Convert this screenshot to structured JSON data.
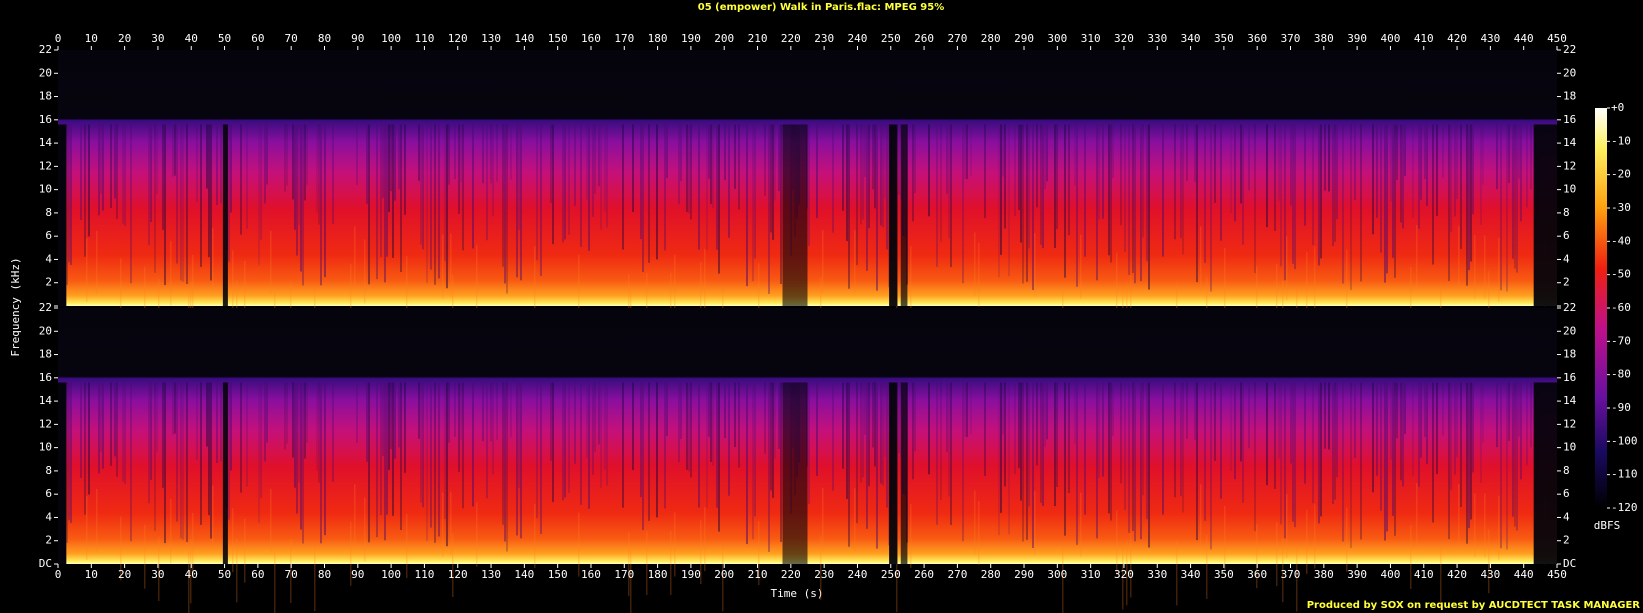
{
  "chart_data": {
    "type": "spectrogram",
    "title": "05 (empower) Walk in Paris.flac: MPEG 95%",
    "xlabel": "Time (s)",
    "ylabel": "Frequency (kHz)",
    "channels": 2,
    "xlim": [
      0,
      450
    ],
    "xticks": [
      0,
      10,
      20,
      30,
      40,
      50,
      60,
      70,
      80,
      90,
      100,
      110,
      120,
      130,
      140,
      150,
      160,
      170,
      180,
      190,
      200,
      210,
      220,
      230,
      240,
      250,
      260,
      270,
      280,
      290,
      300,
      310,
      320,
      330,
      340,
      350,
      360,
      370,
      380,
      390,
      400,
      410,
      420,
      430,
      440,
      450
    ],
    "ylim": [
      0,
      22
    ],
    "yticks": [
      {
        "value": 0,
        "label": "DC"
      },
      2,
      4,
      6,
      8,
      10,
      12,
      14,
      16,
      18,
      20,
      22
    ],
    "colorbar": {
      "label": "dBFS",
      "lim": [
        -120,
        0
      ],
      "ticks": [
        {
          "value": 0,
          "label": "+0"
        },
        -10,
        -20,
        -30,
        -40,
        -50,
        -60,
        -70,
        -80,
        -90,
        -100,
        -110,
        -120
      ]
    },
    "footer": "Produced by SOX on request by AUCDTECT TASK MANAGER"
  }
}
